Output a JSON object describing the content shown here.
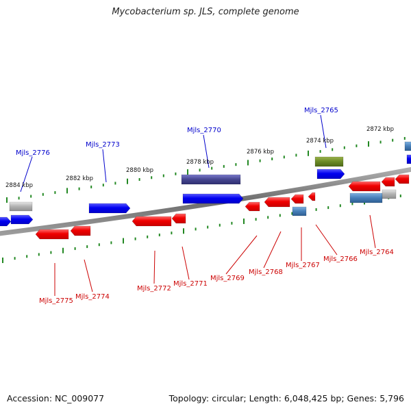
{
  "title": "Mycobacterium sp. JLS, complete genome",
  "footer": {
    "accession": "Accession: NC_009077",
    "topology": "Topology: circular; Length: 6,048,425 bp; Genes: 5,796"
  },
  "colors": {
    "forward_gene": "#0000ee",
    "reverse_gene": "#ee0000",
    "forward_label": "#0000cc",
    "reverse_label": "#cc0000",
    "tick": "#228822",
    "backbone": "#808080",
    "grey_gene": "#b8b8b8",
    "olive_gene": "#6e8c2a",
    "slate_gene": "#4a4a9c",
    "steel_gene": "#4a82bd"
  },
  "position_labels": [
    "2884 kbp",
    "2882 kbp",
    "2880 kbp",
    "2878 kbp",
    "2876 kbp",
    "2874 kbp",
    "2872 kbp"
  ],
  "forward_gene_labels": [
    "Mjls_2776",
    "Mjls_2773",
    "Mjls_2770",
    "Mjls_2765"
  ],
  "reverse_gene_labels": [
    "Mjls_2775",
    "Mjls_2774",
    "Mjls_2772",
    "Mjls_2771",
    "Mjls_2769",
    "Mjls_2768",
    "Mjls_2767",
    "Mjls_2766",
    "Mjls_2764"
  ]
}
